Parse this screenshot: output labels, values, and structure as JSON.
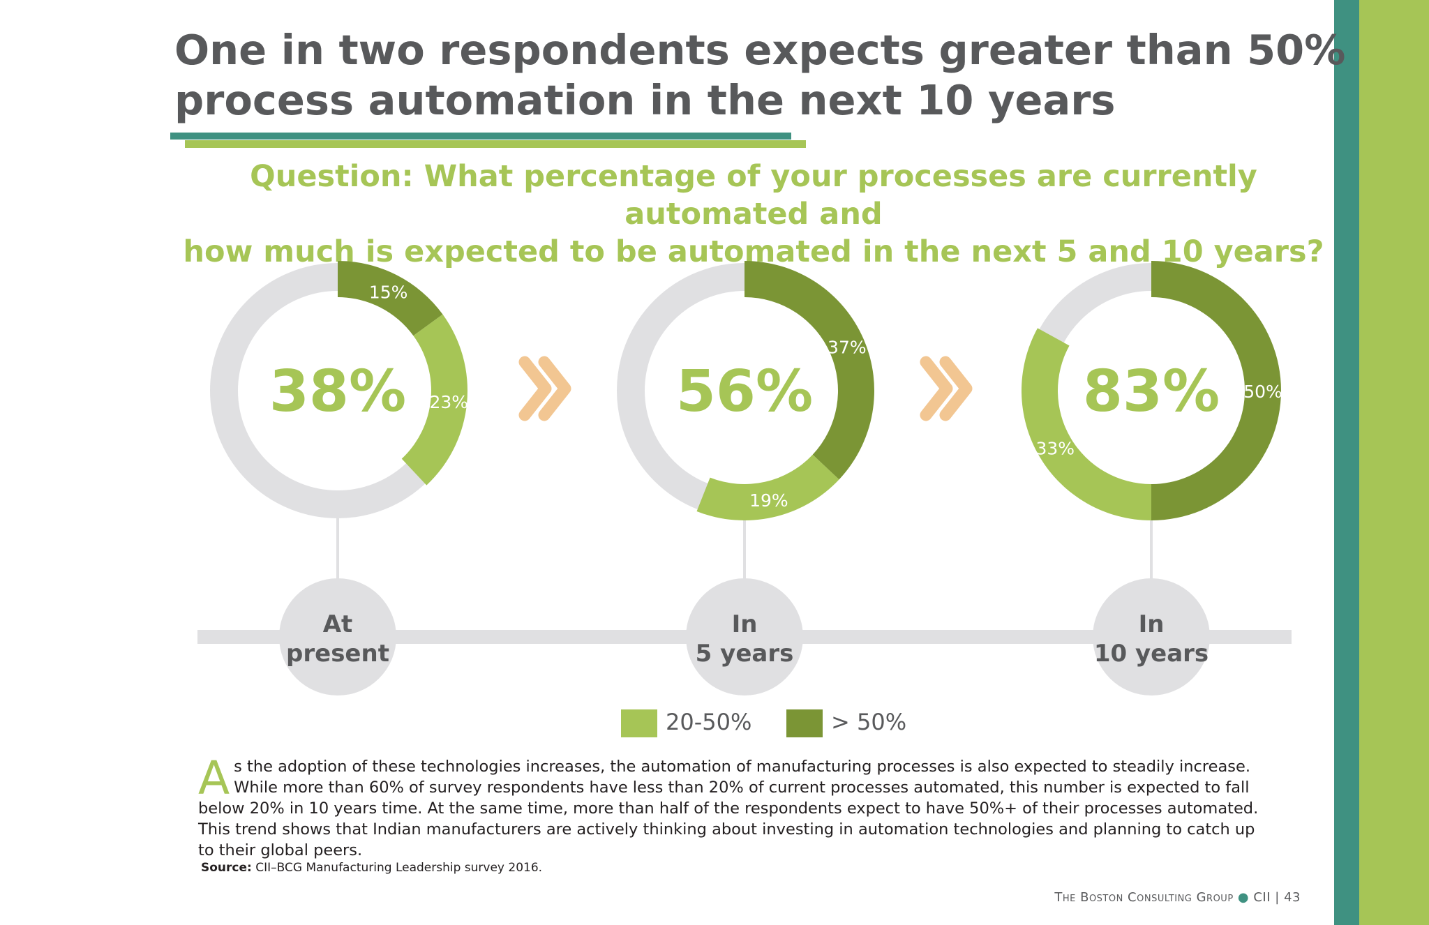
{
  "title_line1": "One in two respondents expects greater than 50%",
  "title_line2": "process automation in the next 10 years",
  "question_line1": "Question: What percentage of your processes are currently automated and",
  "question_line2": "how much is expected to be automated in the next 5 and 10 years?",
  "colors": {
    "light_green": "#a6c556",
    "dark_green": "#7b9535",
    "track_gray": "#e0e0e2",
    "chevron": "#f2c692",
    "teal": "#3f9181"
  },
  "chart_data": {
    "type": "donut",
    "legend": [
      "20-50%",
      "> 50%"
    ],
    "charts": [
      {
        "period_line1": "At",
        "period_line2": "present",
        "total": "38%",
        "over_50": 15,
        "range_20_50": 23,
        "over_50_label": "15%",
        "range_20_50_label": "23%"
      },
      {
        "period_line1": "In",
        "period_line2": "5 years",
        "total": "56%",
        "over_50": 37,
        "range_20_50": 19,
        "over_50_label": "37%",
        "range_20_50_label": "19%"
      },
      {
        "period_line1": "In",
        "period_line2": "10 years",
        "total": "83%",
        "over_50": 50,
        "range_20_50": 33,
        "over_50_label": "50%",
        "range_20_50_label": "33%"
      }
    ]
  },
  "body_dropcap": "A",
  "body_text": "s the adoption of these technologies increases, the automation of manufacturing processes is also expected to steadily increase. While more than 60% of survey respondents have less than 20% of current processes automated, this number is expected to fall below 20% in 10 years time. At the same time, more than half of the respondents expect to have 50%+ of their processes automated. This trend shows that Indian manufacturers are actively thinking about investing in automation technologies and planning to catch up to their global peers.",
  "source_label": "Source:",
  "source_text": " CII–BCG Manufacturing Leadership survey 2016.",
  "footer": {
    "org": "The Boston Consulting Group",
    "partner": "CII",
    "page": "43"
  }
}
